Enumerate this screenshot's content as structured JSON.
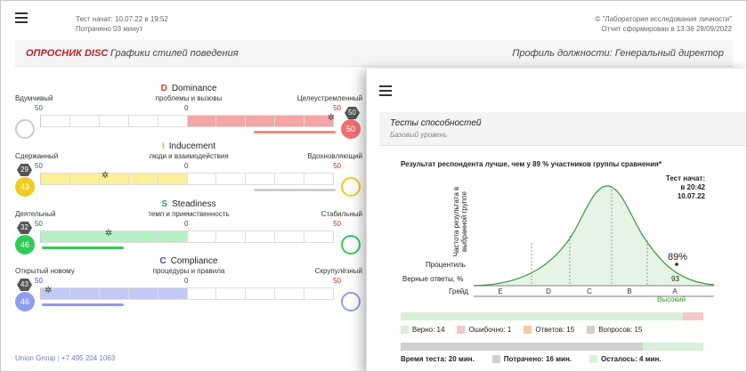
{
  "header": {
    "test_started": "Тест начат: 10.07.22 в 19:52",
    "time_spent": "Потрачено 03 минут",
    "org": "© \"Лаборатория исследования личности\"",
    "report_time": "Отчет сформирован в 13:36   28/09/2022"
  },
  "subbar": {
    "brand": "ОПРОСНИК DISC",
    "subtitle": "Графики стилей поведения",
    "profile": "Профиль должности: Генеральный директор"
  },
  "disc": [
    {
      "letter": "D",
      "name": "Dominance",
      "desc": "проблемы и вызовы",
      "left": "Вдумчивый",
      "right": "Целеустремленный",
      "n_left": "50",
      "n_mid": "0",
      "n_right": "50",
      "score_left": "",
      "score_right": "50",
      "hex_value": "50",
      "accent": "#f08a8a"
    },
    {
      "letter": "I",
      "name": "Inducement",
      "desc": "люди и взаимодействия",
      "left": "Сдержанный",
      "right": "Вдохновляющий",
      "n_left": "50",
      "n_mid": "0",
      "n_right": "50",
      "score_left": "43",
      "score_right": "",
      "hex_value": "29",
      "accent": "#f2d63a"
    },
    {
      "letter": "S",
      "name": "Steadiness",
      "desc": "темп и приемственность",
      "left": "Деятельный",
      "right": "Стабильный",
      "n_left": "50",
      "n_mid": "0",
      "n_right": "50",
      "score_left": "46",
      "score_right": "",
      "hex_value": "32",
      "accent": "#2ecc55"
    },
    {
      "letter": "C",
      "name": "Compliance",
      "desc": "процедуры и правила",
      "left": "Открытый новому",
      "right": "Скрупулёзный",
      "n_left": "50",
      "n_mid": "0",
      "n_right": "50",
      "score_left": "46",
      "score_right": "",
      "hex_value": "43",
      "accent": "#8f9cf0"
    }
  ],
  "footer": {
    "company": "Union Group",
    "phone": "+7 495 204 1063"
  },
  "panel": {
    "title": "Тесты способностей",
    "level": "Базовый уровень",
    "result": "Результат респондента лучше, чем у 89 % участников группы сравнения*",
    "start_label": "Тест начат:",
    "start_time": "в 20:42",
    "start_date": "10.07.22",
    "ylabel": "Частота результата в выбранной группе",
    "percentile_label": "Процентиль",
    "correct_label": "Верные ответы, %",
    "grade_label": "Грейд",
    "percentile_value": "89%",
    "correct_value": "93",
    "grades": [
      "E",
      "D",
      "C",
      "B",
      "A"
    ],
    "grade_high": "Высокий",
    "legend": {
      "correct": "Верно: 14",
      "wrong": "Ошибочно: 1",
      "answers": "Ответов: 15",
      "questions": "Вопросов: 15"
    },
    "time": {
      "total": "Время теста: 20 мин.",
      "spent": "Потрачено: 16 мин.",
      "left": "Осталось: 4 мин."
    },
    "colors": {
      "green": "#d8f0d8",
      "red": "#f6c8c8",
      "orange": "#f3c9a6",
      "gray": "#d0d0d0"
    }
  }
}
